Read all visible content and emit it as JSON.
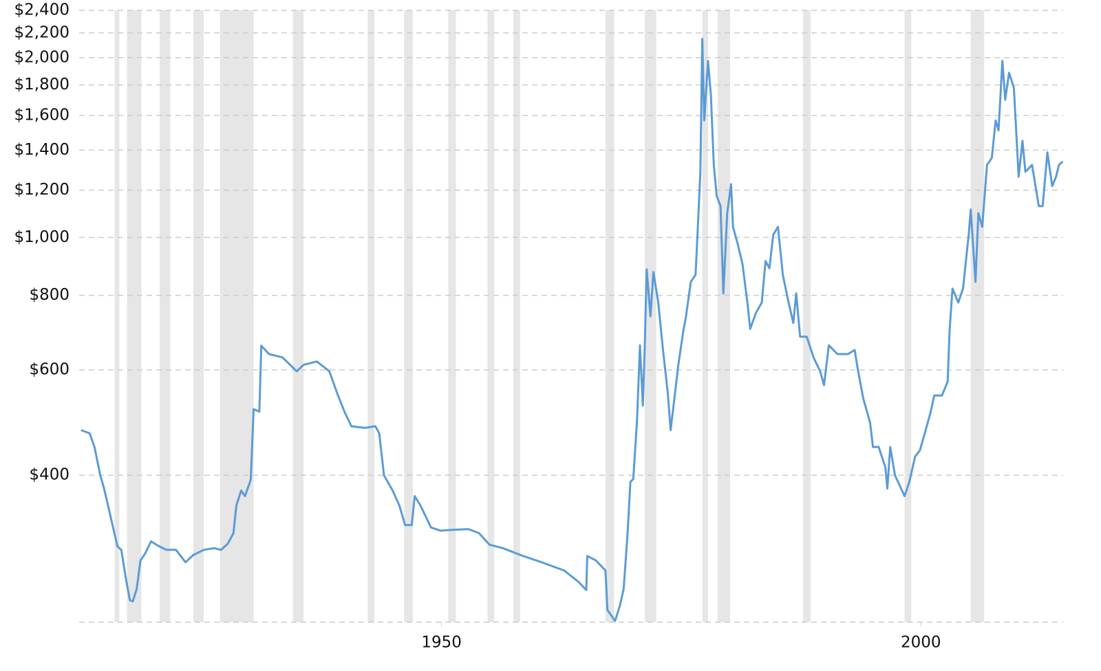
{
  "chart_data": {
    "type": "line",
    "log_scale": true,
    "grid": true,
    "xlim": [
      1912.2,
      2015.2
    ],
    "xticks": [
      1950,
      2000
    ],
    "ylim": [
      227,
      2400
    ],
    "yticks": [
      {
        "value": 400,
        "label": "$400"
      },
      {
        "value": 600,
        "label": "$600"
      },
      {
        "value": 800,
        "label": "$800"
      },
      {
        "value": 1000,
        "label": "$1,000"
      },
      {
        "value": 1200,
        "label": "$1,200"
      },
      {
        "value": 1400,
        "label": "$1,400"
      },
      {
        "value": 1600,
        "label": "$1,600"
      },
      {
        "value": 1800,
        "label": "$1,800"
      },
      {
        "value": 2000,
        "label": "$2,000"
      },
      {
        "value": 2200,
        "label": "$2,200"
      },
      {
        "value": 2400,
        "label": "$2,400"
      }
    ],
    "recession_color": "#e6e6e6",
    "recessions": [
      [
        1915.9,
        1916.4
      ],
      [
        1917.2,
        1918.7
      ],
      [
        1920.6,
        1921.7
      ],
      [
        1924.1,
        1925.2
      ],
      [
        1926.9,
        1930.4
      ],
      [
        1934.5,
        1935.6
      ],
      [
        1942.3,
        1943.0
      ],
      [
        1946.1,
        1947.0
      ],
      [
        1950.7,
        1951.5
      ],
      [
        1954.8,
        1955.5
      ],
      [
        1957.5,
        1958.2
      ],
      [
        1967.1,
        1968.0
      ],
      [
        1971.2,
        1972.4
      ],
      [
        1977.2,
        1977.8
      ],
      [
        1978.8,
        1980.1
      ],
      [
        1987.7,
        1988.5
      ],
      [
        1998.3,
        1999.0
      ],
      [
        2005.2,
        2006.6
      ]
    ],
    "series": [
      {
        "color": "#5b9bd5",
        "x": [
          1912.4,
          1913.3,
          1913.8,
          1914.4,
          1914.8,
          1915.3,
          1915.7,
          1916.2,
          1916.6,
          1917.1,
          1917.5,
          1917.8,
          1918.2,
          1918.6,
          1919.1,
          1919.7,
          1920.4,
          1921.3,
          1922.3,
          1923.3,
          1924.1,
          1925.2,
          1926.3,
          1927.0,
          1927.7,
          1928.3,
          1928.6,
          1929.1,
          1929.5,
          1930.1,
          1930.4,
          1931.0,
          1931.2,
          1932.0,
          1933.4,
          1934.9,
          1935.6,
          1937.0,
          1938.3,
          1939.2,
          1939.9,
          1940.6,
          1942.0,
          1943.1,
          1943.5,
          1944.0,
          1944.9,
          1945.6,
          1946.2,
          1946.9,
          1947.2,
          1947.8,
          1948.9,
          1949.9,
          1951.0,
          1952.8,
          1953.9,
          1955.0,
          1956.4,
          1958.5,
          1960.7,
          1962.8,
          1964.3,
          1965.1,
          1965.2,
          1966.1,
          1967.1,
          1967.3,
          1968.1,
          1968.6,
          1969.0,
          1969.4,
          1969.7,
          1970.0,
          1970.4,
          1970.7,
          1971.0,
          1971.2,
          1971.4,
          1971.8,
          1972.1,
          1972.6,
          1973.1,
          1973.6,
          1973.9,
          1974.2,
          1974.7,
          1975.2,
          1975.5,
          1976.0,
          1976.5,
          1976.7,
          1977.0,
          1977.2,
          1977.4,
          1977.8,
          1978.1,
          1978.4,
          1978.7,
          1979.1,
          1979.4,
          1979.8,
          1980.2,
          1980.4,
          1980.9,
          1981.4,
          1981.9,
          1982.2,
          1982.8,
          1983.4,
          1983.8,
          1984.2,
          1984.6,
          1985.1,
          1985.6,
          1986.2,
          1986.7,
          1987.0,
          1987.4,
          1988.1,
          1988.8,
          1989.5,
          1989.9,
          1990.4,
          1991.3,
          1992.4,
          1993.1,
          1993.4,
          1994.0,
          1994.7,
          1995.0,
          1995.6,
          1996.3,
          1996.5,
          1996.8,
          1997.3,
          1998.3,
          1998.8,
          1999.4,
          1999.9,
          2000.5,
          2001.0,
          2001.4,
          2002.2,
          2002.8,
          2003.0,
          2003.3,
          2003.9,
          2004.4,
          2005.0,
          2005.2,
          2005.7,
          2006.0,
          2006.4,
          2006.9,
          2007.4,
          2007.8,
          2008.1,
          2008.5,
          2008.8,
          2009.2,
          2009.7,
          2010.2,
          2010.6,
          2010.9,
          2011.6,
          2012.3,
          2012.7,
          2013.2,
          2013.7,
          2014.1,
          2014.4,
          2014.8
        ],
        "values": [
          476,
          470,
          446,
          400,
          380,
          351,
          329,
          304,
          300,
          267,
          247,
          246,
          258,
          288,
          296,
          310,
          305,
          300,
          300,
          286,
          294,
          300,
          302,
          300,
          307,
          320,
          356,
          377,
          369,
          393,
          516,
          511,
          659,
          638,
          630,
          597,
          612,
          620,
          597,
          544,
          510,
          483,
          480,
          483,
          470,
          400,
          377,
          356,
          330,
          330,
          369,
          356,
          327,
          323,
          324,
          325,
          320,
          306,
          302,
          293,
          285,
          277,
          265,
          257,
          293,
          288,
          277,
          238,
          228,
          242,
          258,
          318,
          390,
          394,
          496,
          660,
          523,
          660,
          884,
          738,
          875,
          780,
          648,
          550,
          476,
          523,
          612,
          694,
          738,
          843,
          866,
          1010,
          1288,
          2150,
          1570,
          1975,
          1730,
          1323,
          1174,
          1128,
          806,
          1098,
          1228,
          1042,
          975,
          901,
          778,
          703,
          748,
          778,
          913,
          888,
          1010,
          1042,
          866,
          778,
          719,
          806,
          682,
          682,
          630,
          597,
          566,
          660,
          638,
          638,
          648,
          604,
          537,
          490,
          446,
          446,
          412,
          380,
          446,
          400,
          369,
          390,
          430,
          440,
          476,
          509,
          544,
          544,
          574,
          700,
          821,
          778,
          821,
          1015,
          1114,
          843,
          1098,
          1042,
          1323,
          1358,
          1570,
          1511,
          1975,
          1700,
          1887,
          1780,
          1264,
          1451,
          1288,
          1323,
          1128,
          1128,
          1388,
          1219,
          1264,
          1323,
          1340
        ]
      }
    ]
  }
}
